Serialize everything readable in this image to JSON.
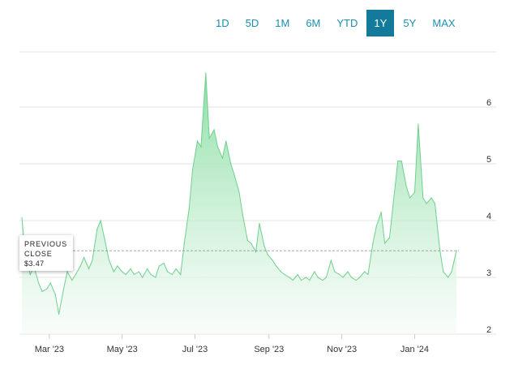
{
  "range_buttons": [
    "1D",
    "5D",
    "1M",
    "6M",
    "YTD",
    "1Y",
    "5Y",
    "MAX"
  ],
  "active_range": "1Y",
  "previous_close": {
    "label_line1": "PREVIOUS",
    "label_line2": "CLOSE",
    "value_text": "$3.47"
  },
  "colors": {
    "accent": "#137a9c",
    "link": "#1a8fb0",
    "area_top": "#86dda0",
    "area_bottom": "#f4fbf6",
    "line": "#6fd08e"
  },
  "chart_data": {
    "type": "area",
    "x_tick_labels": [
      "Mar '23",
      "May '23",
      "Jul '23",
      "Sep '23",
      "Nov '23",
      "Jan '24"
    ],
    "y_tick_labels": [
      "2",
      "3",
      "4",
      "5",
      "6"
    ],
    "ylim": [
      2,
      6.8
    ],
    "y_axis_side": "right",
    "grid": true,
    "previous_close": 3.47,
    "x": [
      "2023-02-06",
      "2023-02-09",
      "2023-02-13",
      "2023-02-16",
      "2023-02-20",
      "2023-02-23",
      "2023-02-27",
      "2023-03-02",
      "2023-03-06",
      "2023-03-09",
      "2023-03-13",
      "2023-03-16",
      "2023-03-20",
      "2023-03-23",
      "2023-03-27",
      "2023-03-30",
      "2023-04-03",
      "2023-04-06",
      "2023-04-10",
      "2023-04-13",
      "2023-04-17",
      "2023-04-20",
      "2023-04-24",
      "2023-04-27",
      "2023-05-01",
      "2023-05-04",
      "2023-05-08",
      "2023-05-11",
      "2023-05-15",
      "2023-05-18",
      "2023-05-22",
      "2023-05-25",
      "2023-05-29",
      "2023-06-01",
      "2023-06-05",
      "2023-06-08",
      "2023-06-12",
      "2023-06-15",
      "2023-06-19",
      "2023-06-22",
      "2023-06-26",
      "2023-06-29",
      "2023-07-03",
      "2023-07-06",
      "2023-07-10",
      "2023-07-13",
      "2023-07-17",
      "2023-07-20",
      "2023-07-24",
      "2023-07-27",
      "2023-07-31",
      "2023-08-03",
      "2023-08-07",
      "2023-08-10",
      "2023-08-14",
      "2023-08-17",
      "2023-08-21",
      "2023-08-24",
      "2023-08-28",
      "2023-08-31",
      "2023-09-04",
      "2023-09-07",
      "2023-09-11",
      "2023-09-14",
      "2023-09-18",
      "2023-09-21",
      "2023-09-25",
      "2023-09-28",
      "2023-10-02",
      "2023-10-05",
      "2023-10-09",
      "2023-10-12",
      "2023-10-16",
      "2023-10-19",
      "2023-10-23",
      "2023-10-26",
      "2023-10-30",
      "2023-11-02",
      "2023-11-06",
      "2023-11-09",
      "2023-11-13",
      "2023-11-16",
      "2023-11-20",
      "2023-11-23",
      "2023-11-27",
      "2023-11-30",
      "2023-12-04",
      "2023-12-07",
      "2023-12-11",
      "2023-12-14",
      "2023-12-18",
      "2023-12-21",
      "2023-12-25",
      "2023-12-28",
      "2024-01-01",
      "2024-01-04",
      "2024-01-08",
      "2024-01-11",
      "2024-01-15",
      "2024-01-18",
      "2024-01-22",
      "2024-01-25",
      "2024-01-29",
      "2024-02-01",
      "2024-02-05"
    ],
    "values": [
      4.05,
      3.4,
      3.05,
      3.2,
      2.9,
      2.75,
      2.8,
      2.9,
      2.7,
      2.35,
      2.8,
      3.1,
      2.95,
      3.05,
      3.2,
      3.35,
      3.15,
      3.3,
      3.85,
      4.0,
      3.6,
      3.3,
      3.1,
      3.2,
      3.1,
      3.05,
      3.15,
      3.05,
      3.1,
      3.0,
      3.15,
      3.05,
      3.0,
      3.2,
      3.25,
      3.1,
      3.05,
      3.15,
      3.05,
      3.6,
      4.2,
      4.9,
      5.4,
      5.3,
      6.6,
      5.45,
      5.6,
      5.3,
      5.1,
      5.4,
      5.0,
      4.8,
      4.5,
      4.1,
      3.65,
      3.6,
      3.45,
      3.95,
      3.55,
      3.4,
      3.3,
      3.2,
      3.1,
      3.05,
      3.0,
      2.95,
      3.05,
      2.95,
      3.0,
      2.95,
      3.1,
      3.0,
      2.95,
      3.0,
      3.3,
      3.1,
      3.05,
      3.0,
      3.1,
      3.0,
      2.95,
      3.0,
      3.1,
      3.05,
      3.6,
      3.9,
      4.15,
      3.6,
      3.7,
      4.3,
      5.05,
      5.05,
      4.6,
      4.4,
      4.5,
      5.7,
      4.4,
      4.3,
      4.4,
      4.3,
      3.5,
      3.1,
      3.0,
      3.1,
      3.47
    ]
  }
}
